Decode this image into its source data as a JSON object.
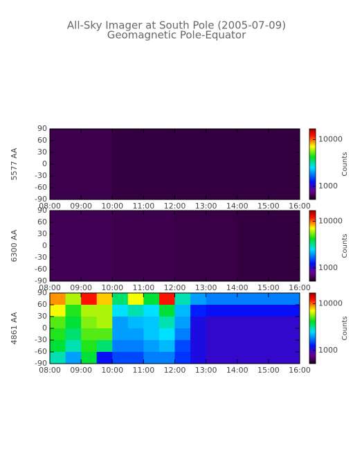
{
  "header": {
    "title": "All-Sky Imager at South Pole (2005-07-09)",
    "subtitle": "Geomagnetic Pole-Equator"
  },
  "chart_data": [
    {
      "type": "heatmap",
      "ylabel": "5577 AA",
      "colorbar_label": "Counts",
      "xlim": [
        8,
        16
      ],
      "xticks": [
        {
          "value": 8,
          "label": "08:00"
        },
        {
          "value": 9,
          "label": "09:00"
        },
        {
          "value": 10,
          "label": "10:00"
        },
        {
          "value": 11,
          "label": "11:00"
        },
        {
          "value": 12,
          "label": "12:00"
        },
        {
          "value": 13,
          "label": "13:00"
        },
        {
          "value": 14,
          "label": "14:00"
        },
        {
          "value": 15,
          "label": "15:00"
        },
        {
          "value": 16,
          "label": "16:00"
        }
      ],
      "ylim": [
        -90,
        90
      ],
      "yticks": [
        -90,
        -60,
        -30,
        0,
        30,
        60,
        90
      ],
      "zlim": [
        520,
        17000
      ],
      "zticks": [
        1000,
        10000
      ],
      "xbins": [
        8,
        10,
        12,
        14,
        16
      ],
      "ybins": [
        90,
        -90
      ],
      "z": [
        [
          620,
          600,
          600,
          600
        ]
      ]
    },
    {
      "type": "heatmap",
      "ylabel": "6300 AA",
      "colorbar_label": "Counts",
      "xlim": [
        8,
        16
      ],
      "xticks": [
        {
          "value": 8,
          "label": "08:00"
        },
        {
          "value": 9,
          "label": "09:00"
        },
        {
          "value": 10,
          "label": "10:00"
        },
        {
          "value": 11,
          "label": "11:00"
        },
        {
          "value": 12,
          "label": "12:00"
        },
        {
          "value": 13,
          "label": "13:00"
        },
        {
          "value": 14,
          "label": "14:00"
        },
        {
          "value": 15,
          "label": "15:00"
        },
        {
          "value": 16,
          "label": "16:00"
        }
      ],
      "ylim": [
        -90,
        90
      ],
      "yticks": [
        -90,
        -60,
        -30,
        0,
        30,
        60,
        90
      ],
      "zlim": [
        520,
        17000
      ],
      "zticks": [
        1000,
        10000
      ],
      "xbins": [
        8,
        10,
        12,
        14,
        16
      ],
      "ybins": [
        90,
        -90
      ],
      "z": [
        [
          640,
          620,
          610,
          600
        ]
      ]
    },
    {
      "type": "heatmap",
      "ylabel": "4861 AA",
      "colorbar_label": "Counts",
      "xlim": [
        8,
        16
      ],
      "xticks": [
        {
          "value": 8,
          "label": "08:00"
        },
        {
          "value": 9,
          "label": "09:00"
        },
        {
          "value": 10,
          "label": "10:00"
        },
        {
          "value": 11,
          "label": "11:00"
        },
        {
          "value": 12,
          "label": "12:00"
        },
        {
          "value": 13,
          "label": "13:00"
        },
        {
          "value": 14,
          "label": "14:00"
        },
        {
          "value": 15,
          "label": "15:00"
        },
        {
          "value": 16,
          "label": "16:00"
        }
      ],
      "ylim": [
        -90,
        90
      ],
      "yticks": [
        -90,
        -60,
        -30,
        0,
        30,
        60,
        90
      ],
      "zlim": [
        520,
        17000
      ],
      "zticks": [
        1000,
        10000
      ],
      "xbins": [
        8,
        8.5,
        9,
        9.5,
        10,
        10.5,
        11,
        11.5,
        12,
        12.5,
        13,
        13.5,
        14,
        14.5,
        15,
        15.5,
        16
      ],
      "ybins": [
        90,
        60,
        30,
        0,
        -30,
        -60,
        -90
      ],
      "z": [
        [
          9000,
          6000,
          12000,
          8000,
          3500,
          7000,
          4000,
          12000,
          3000,
          2000,
          1800,
          1800,
          1800,
          1800,
          1800,
          1800
        ],
        [
          7000,
          4500,
          6000,
          6000,
          2500,
          3000,
          2500,
          4000,
          2200,
          1300,
          1200,
          1200,
          1200,
          1200,
          1200,
          1200
        ],
        [
          5000,
          4000,
          5500,
          6000,
          2000,
          2200,
          2300,
          3000,
          2000,
          1100,
          1000,
          1000,
          1000,
          1000,
          1000,
          1000
        ],
        [
          4500,
          3500,
          5000,
          5000,
          2000,
          2000,
          2300,
          2500,
          1800,
          1100,
          1000,
          1000,
          1000,
          1000,
          1000,
          1000
        ],
        [
          4000,
          3000,
          4500,
          3500,
          1800,
          1800,
          2000,
          2200,
          1500,
          1100,
          1000,
          1000,
          1000,
          1000,
          1000,
          1000
        ],
        [
          3000,
          2000,
          4000,
          1200,
          1500,
          1500,
          1800,
          1800,
          1400,
          1100,
          1000,
          1000,
          1000,
          1000,
          1000,
          1000
        ]
      ]
    }
  ]
}
